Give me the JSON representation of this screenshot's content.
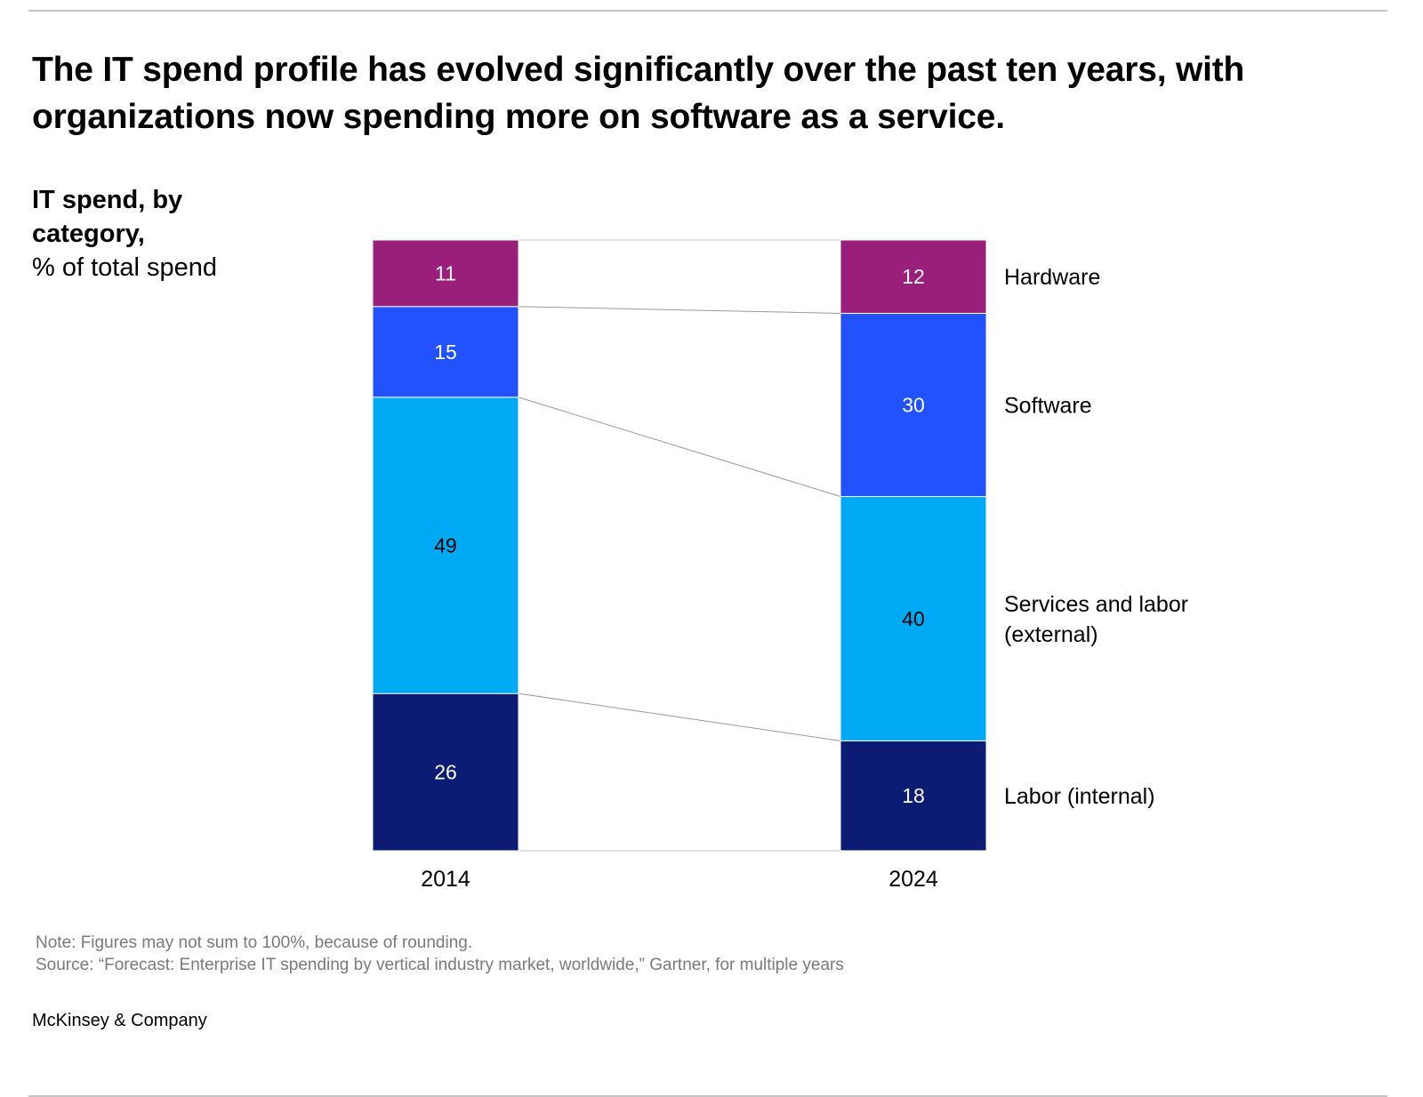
{
  "header": {
    "title": "The IT spend profile has evolved significantly over the past ten years, with organizations now spending more on software as a service."
  },
  "chart_data": {
    "type": "bar",
    "stacked": true,
    "title": "IT spend, by category,",
    "ylabel": "% of total spend",
    "categories": [
      "2014",
      "2024"
    ],
    "series": [
      {
        "name": "Labor (internal)",
        "values": [
          26,
          18
        ],
        "color": "#0c1c74",
        "label_color": "#ffffff"
      },
      {
        "name": "Services and labor (external)",
        "values": [
          49,
          40
        ],
        "color": "#00a9f4",
        "label_color": "#000000"
      },
      {
        "name": "Software",
        "values": [
          15,
          30
        ],
        "color": "#2251ff",
        "label_color": "#ffffff"
      },
      {
        "name": "Hardware",
        "values": [
          11,
          12
        ],
        "color": "#9a1f7a",
        "label_color": "#ffffff"
      }
    ],
    "legend_position": "right",
    "grid": false
  },
  "notes": {
    "note": "Note: Figures may not sum to 100%, because of rounding.",
    "source": "Source: “Forecast: Enterprise IT spending by vertical industry market, worldwide,” Gartner, for multiple years"
  },
  "footer": {
    "brand": "McKinsey & Company"
  }
}
